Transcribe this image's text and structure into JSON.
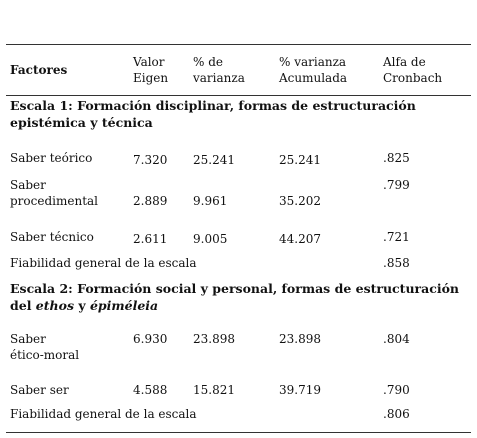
{
  "table": {
    "header": [
      [
        "Factores"
      ],
      [
        "Valor",
        "Eigen"
      ],
      [
        "% de",
        "varianza"
      ],
      [
        "% varianza",
        "Acumulada"
      ],
      [
        "Alfa de",
        "Cronbach"
      ]
    ],
    "sections": [
      {
        "title": [
          {
            "text": "Escala 1: Formación disciplinar, formas de estructuración epistémica y técnica"
          }
        ],
        "rows": [
          {
            "name": [
              "Saber teórico"
            ],
            "values": [
              "7.320",
              "25.241",
              "25.241",
              ".825"
            ]
          },
          {
            "name": [
              "Saber",
              "procedimental"
            ],
            "values": [
              "2.889",
              "9.961",
              "35.202",
              ".799"
            ]
          },
          {
            "name": [
              "Saber técnico"
            ],
            "values": [
              "2.611",
              "9.005",
              "44.207",
              ".721"
            ]
          }
        ],
        "reliability": {
          "label": "Fiabilidad general de la escala",
          "value": ".858"
        }
      },
      {
        "title": [
          {
            "text": "Escala 2: Formación social y personal, formas de estructuración del "
          },
          {
            "text": "ethos",
            "italic": true
          },
          {
            "text": " y "
          },
          {
            "text": "épiméleia",
            "italic": true
          }
        ],
        "rows": [
          {
            "name": [
              "Saber",
              "ético-moral"
            ],
            "values": [
              "6.930",
              "23.898",
              "23.898",
              ".804"
            ]
          },
          {
            "name": [
              "Saber ser"
            ],
            "values": [
              "4.588",
              "15.821",
              "39.719",
              ".790"
            ]
          }
        ],
        "reliability": {
          "label": "Fiabilidad general de la escala",
          "value": ".806"
        }
      }
    ]
  }
}
